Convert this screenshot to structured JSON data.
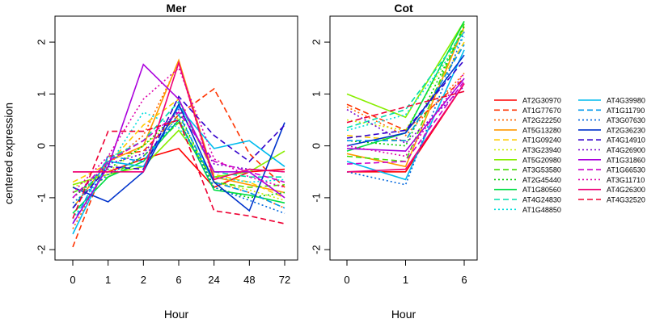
{
  "chart_data": [
    {
      "type": "line",
      "title": "Mer",
      "xlabel": "Hour",
      "ylabel": "centered expression",
      "categories": [
        "0",
        "1",
        "2",
        "6",
        "24",
        "48",
        "72"
      ],
      "ylim": [
        -2.2,
        2.5
      ],
      "yticks": [
        -2,
        -1,
        0,
        1,
        2
      ],
      "series": [
        {
          "name": "AT2G30970",
          "color": "#ff0000",
          "dash": "solid",
          "values": [
            -0.5,
            -0.5,
            -0.25,
            -0.05,
            -0.8,
            -0.5,
            -0.45
          ]
        },
        {
          "name": "AT1G77670",
          "color": "#ff3300",
          "dash": "dashed",
          "values": [
            -1.95,
            -0.2,
            -0.1,
            0.6,
            1.1,
            -0.15,
            -0.8
          ]
        },
        {
          "name": "AT2G22250",
          "color": "#ff6600",
          "dash": "dotted",
          "values": [
            -1.6,
            -0.35,
            0.2,
            1.6,
            -0.7,
            -0.9,
            -1.2
          ]
        },
        {
          "name": "AT5G13280",
          "color": "#ff9900",
          "dash": "solid",
          "values": [
            -1.2,
            -0.3,
            0.0,
            1.65,
            -0.6,
            -0.75,
            -0.9
          ]
        },
        {
          "name": "AT1G09240",
          "color": "#ffcc00",
          "dash": "dashed",
          "values": [
            -0.7,
            -0.35,
            0.4,
            0.9,
            -0.55,
            -0.7,
            -1.0
          ]
        },
        {
          "name": "AT3G23940",
          "color": "#ccee00",
          "dash": "dotted",
          "values": [
            -0.8,
            -0.5,
            0.0,
            0.55,
            -0.7,
            -0.85,
            -1.05
          ]
        },
        {
          "name": "AT5G20980",
          "color": "#88ee00",
          "dash": "solid",
          "values": [
            -0.75,
            -0.55,
            -0.4,
            0.3,
            -0.6,
            -0.5,
            -0.1
          ]
        },
        {
          "name": "AT3G53580",
          "color": "#44dd00",
          "dash": "dashed",
          "values": [
            -0.9,
            -0.6,
            -0.2,
            0.45,
            -0.7,
            -0.8,
            -0.75
          ]
        },
        {
          "name": "AT2G45440",
          "color": "#00cc00",
          "dash": "dotted",
          "values": [
            -1.0,
            -0.45,
            0.0,
            0.65,
            -0.8,
            -1.0,
            -0.9
          ]
        },
        {
          "name": "AT1G80560",
          "color": "#00dd44",
          "dash": "solid",
          "values": [
            -1.3,
            -0.6,
            -0.3,
            0.5,
            -0.85,
            -0.95,
            -1.1
          ]
        },
        {
          "name": "AT4G24830",
          "color": "#00ddaa",
          "dash": "dashed",
          "values": [
            -1.2,
            -0.25,
            0.1,
            0.85,
            -0.5,
            -0.6,
            -0.6
          ]
        },
        {
          "name": "AT1G48850",
          "color": "#00dddd",
          "dash": "dotted",
          "values": [
            -1.4,
            -0.4,
            0.65,
            0.35,
            -0.6,
            -0.7,
            -0.65
          ]
        },
        {
          "name": "AT4G39980",
          "color": "#00bbee",
          "dash": "solid",
          "values": [
            -1.7,
            -0.3,
            -0.4,
            0.75,
            -0.05,
            0.1,
            -0.4
          ]
        },
        {
          "name": "AT1G11790",
          "color": "#0099ee",
          "dash": "dashed",
          "values": [
            -1.5,
            -0.2,
            -0.3,
            0.6,
            -0.7,
            -0.9,
            -1.2
          ]
        },
        {
          "name": "AT3G07630",
          "color": "#0066dd",
          "dash": "dotted",
          "values": [
            -1.1,
            -0.55,
            -0.2,
            0.5,
            -0.8,
            -1.05,
            -1.3
          ]
        },
        {
          "name": "AT2G36230",
          "color": "#0033cc",
          "dash": "solid",
          "values": [
            -0.8,
            -1.08,
            -0.5,
            0.8,
            -0.7,
            -1.25,
            0.45
          ]
        },
        {
          "name": "AT4G14910",
          "color": "#3300cc",
          "dash": "dashed",
          "values": [
            -1.2,
            -0.4,
            -0.45,
            0.95,
            0.2,
            -0.3,
            0.4
          ]
        },
        {
          "name": "AT4G26900",
          "color": "#7700cc",
          "dash": "dotted",
          "values": [
            -1.0,
            -0.35,
            -0.15,
            0.7,
            -0.35,
            -0.45,
            -0.5
          ]
        },
        {
          "name": "AT1G31860",
          "color": "#aa00dd",
          "dash": "solid",
          "values": [
            -1.5,
            -0.4,
            1.57,
            0.9,
            -0.5,
            -0.5,
            -1.0
          ]
        },
        {
          "name": "AT1G66530",
          "color": "#cc00cc",
          "dash": "dashed",
          "values": [
            -1.0,
            -0.3,
            0.1,
            0.65,
            -0.3,
            -0.5,
            -0.7
          ]
        },
        {
          "name": "AT3G11710",
          "color": "#dd00aa",
          "dash": "dotted",
          "values": [
            -0.9,
            -0.2,
            0.9,
            1.5,
            -0.25,
            -0.6,
            -0.8
          ]
        },
        {
          "name": "AT4G26300",
          "color": "#ee0077",
          "dash": "solid",
          "values": [
            -0.5,
            -0.5,
            -0.5,
            1.6,
            -0.65,
            -0.45,
            -0.5
          ]
        },
        {
          "name": "AT4G32520",
          "color": "#ee0033",
          "dash": "dashed",
          "values": [
            -1.4,
            0.28,
            0.28,
            0.5,
            -1.25,
            -1.35,
            -1.5
          ]
        }
      ]
    },
    {
      "type": "line",
      "title": "Cot",
      "xlabel": "Hour",
      "ylabel": "",
      "categories": [
        "0",
        "1",
        "6"
      ],
      "ylim": [
        -2.2,
        2.5
      ],
      "yticks": [
        -2,
        -1,
        0,
        1,
        2
      ],
      "series": [
        {
          "name": "AT2G30970",
          "values": [
            -0.5,
            -0.5,
            1.2
          ]
        },
        {
          "name": "AT1G77670",
          "values": [
            0.8,
            0.3,
            1.3
          ]
        },
        {
          "name": "AT2G22250",
          "values": [
            0.75,
            0.2,
            1.4
          ]
        },
        {
          "name": "AT5G13280",
          "values": [
            -0.15,
            -0.4,
            2.3
          ]
        },
        {
          "name": "AT1G09240",
          "values": [
            0.2,
            0.1,
            2.0
          ]
        },
        {
          "name": "AT3G23940",
          "values": [
            0.5,
            0.3,
            2.25
          ]
        },
        {
          "name": "AT5G20980",
          "values": [
            1.0,
            0.55,
            2.4
          ]
        },
        {
          "name": "AT3G53580",
          "values": [
            -0.2,
            -0.3,
            2.35
          ]
        },
        {
          "name": "AT2G45440",
          "values": [
            0.1,
            0.0,
            2.3
          ]
        },
        {
          "name": "AT1G80560",
          "values": [
            -0.1,
            0.25,
            2.4
          ]
        },
        {
          "name": "AT4G24830",
          "values": [
            0.35,
            0.7,
            2.2
          ]
        },
        {
          "name": "AT1G48850",
          "values": [
            0.3,
            0.6,
            2.1
          ]
        },
        {
          "name": "AT4G39980",
          "values": [
            -0.3,
            -0.65,
            1.85
          ]
        },
        {
          "name": "AT1G11790",
          "values": [
            0.1,
            0.1,
            1.95
          ]
        },
        {
          "name": "AT3G07630",
          "values": [
            -0.5,
            -0.75,
            2.2
          ]
        },
        {
          "name": "AT2G36230",
          "values": [
            0.0,
            0.25,
            1.75
          ]
        },
        {
          "name": "AT4G14910",
          "values": [
            0.15,
            0.3,
            1.65
          ]
        },
        {
          "name": "AT4G26900",
          "values": [
            0.7,
            0.05,
            1.15
          ]
        },
        {
          "name": "AT1G31860",
          "values": [
            -0.05,
            -0.1,
            1.3
          ]
        },
        {
          "name": "AT1G66530",
          "values": [
            -0.35,
            -0.3,
            1.25
          ]
        },
        {
          "name": "AT3G11710",
          "values": [
            0.0,
            -0.2,
            1.4
          ]
        },
        {
          "name": "AT4G26300",
          "values": [
            -0.5,
            -0.45,
            1.2
          ]
        },
        {
          "name": "AT4G32520",
          "values": [
            0.45,
            0.75,
            1.05
          ]
        }
      ]
    }
  ],
  "legend": {
    "placement": "right",
    "columns": 2
  }
}
